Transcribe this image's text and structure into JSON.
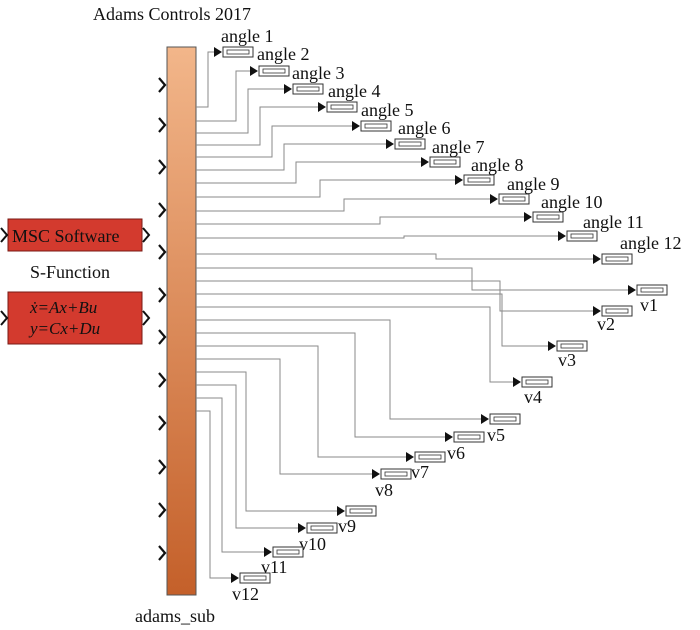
{
  "block": {
    "title": "Adams Controls 2017",
    "name": "adams_sub"
  },
  "left_blocks": {
    "msc_label": "MSC Software",
    "sfunction_label": "S-Function",
    "state_eq_1": "ẋ=Ax+Bu",
    "state_eq_2": "y=Cx+Du"
  },
  "outputs": [
    "angle 1",
    "angle 2",
    "angle 3",
    "angle 4",
    "angle 5",
    "angle 6",
    "angle 7",
    "angle 8",
    "angle 9",
    "angle 10",
    "angle 11",
    "angle 12",
    "v1",
    "v2",
    "v3",
    "v4",
    "v5",
    "v6",
    "v7",
    "v8",
    "v9",
    "v10",
    "v11",
    "v12"
  ],
  "colors": {
    "block_top": "#f0b183",
    "block_bottom": "#c8642a",
    "red_block": "#d33a2e",
    "line": "#8a8a8a"
  }
}
